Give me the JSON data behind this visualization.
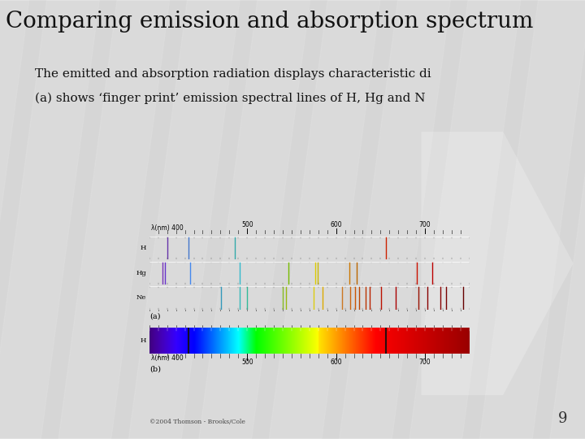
{
  "title": "Comparing emission and absorption spectrum",
  "subtitle_line1": "The emitted and absorption radiation displays characteristic di",
  "subtitle_line2": "(a) shows ‘finger print’ emission spectral lines of H, Hg and N",
  "background_color": "#c8c8c8",
  "page_number": "9",
  "wavelength_range": [
    390,
    750
  ],
  "H_emission_lines": [
    {
      "wl": 410,
      "color": "#6633AA"
    },
    {
      "wl": 434,
      "color": "#4477CC"
    },
    {
      "wl": 486,
      "color": "#33AAAA"
    },
    {
      "wl": 656,
      "color": "#CC2200"
    }
  ],
  "Hg_emission_lines": [
    {
      "wl": 405,
      "color": "#7733BB"
    },
    {
      "wl": 408,
      "color": "#6633CC"
    },
    {
      "wl": 436,
      "color": "#4488EE"
    },
    {
      "wl": 492,
      "color": "#33BBCC"
    },
    {
      "wl": 546,
      "color": "#77BB00"
    },
    {
      "wl": 577,
      "color": "#DDCC00"
    },
    {
      "wl": 579,
      "color": "#CCBB00"
    },
    {
      "wl": 615,
      "color": "#CC7700"
    },
    {
      "wl": 623,
      "color": "#BB6600"
    },
    {
      "wl": 691,
      "color": "#CC1100"
    },
    {
      "wl": 708,
      "color": "#BB0000"
    }
  ],
  "Ne_emission_lines": [
    {
      "wl": 471,
      "color": "#3399BB"
    },
    {
      "wl": 492,
      "color": "#33BBBB"
    },
    {
      "wl": 500,
      "color": "#33BB99"
    },
    {
      "wl": 540,
      "color": "#88BB22"
    },
    {
      "wl": 544,
      "color": "#99BB11"
    },
    {
      "wl": 575,
      "color": "#DDCC11"
    },
    {
      "wl": 585,
      "color": "#DDAA00"
    },
    {
      "wl": 607,
      "color": "#CC7722"
    },
    {
      "wl": 616,
      "color": "#CC6611"
    },
    {
      "wl": 621,
      "color": "#CC5500"
    },
    {
      "wl": 626,
      "color": "#BB4400"
    },
    {
      "wl": 633,
      "color": "#BB3300"
    },
    {
      "wl": 638,
      "color": "#BB2200"
    },
    {
      "wl": 651,
      "color": "#BB1100"
    },
    {
      "wl": 667,
      "color": "#AA0000"
    },
    {
      "wl": 693,
      "color": "#991100"
    },
    {
      "wl": 703,
      "color": "#880000"
    },
    {
      "wl": 717,
      "color": "#880000"
    },
    {
      "wl": 724,
      "color": "#770000"
    },
    {
      "wl": 743,
      "color": "#660000"
    }
  ],
  "H_absorption_lines": [
    {
      "wl": 434,
      "color": "#111111"
    },
    {
      "wl": 656,
      "color": "#111111"
    }
  ]
}
